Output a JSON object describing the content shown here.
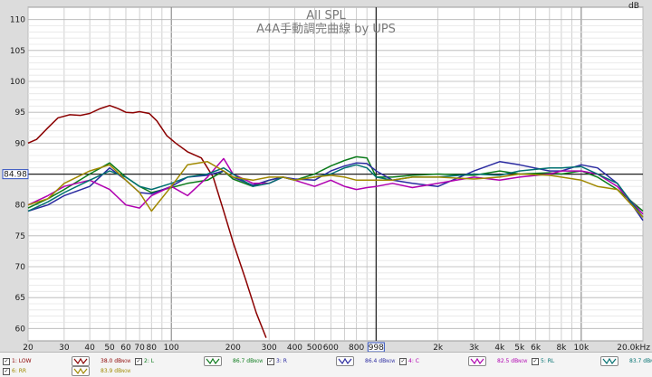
{
  "chart_data": {
    "type": "line",
    "title": "All SPL",
    "subtitle": "A4A手動調完曲線 by UPS",
    "ylabel": "dB",
    "xlim": [
      20,
      20000
    ],
    "ylim": [
      58,
      112
    ],
    "xscale": "log",
    "grid": true,
    "reference_line_db": 84.98,
    "reference_label": "84.98",
    "cursor_freq": 998,
    "cursor_label": "998",
    "y_ticks": [
      60,
      65,
      70,
      75,
      80,
      85,
      90,
      95,
      100,
      105,
      110
    ],
    "y_tick_labels": [
      "60",
      "65",
      "70",
      "75",
      "80",
      "85",
      "90",
      "95",
      "100",
      "105",
      "110"
    ],
    "x_ticks": [
      20,
      30,
      40,
      50,
      60,
      70,
      80,
      100,
      200,
      300,
      400,
      500,
      600,
      800,
      2000,
      3000,
      4000,
      5000,
      6000,
      8000,
      10000,
      20000
    ],
    "x_tick_labels": [
      "20",
      "30",
      "40",
      "50",
      "60",
      "70",
      "80",
      "100",
      "200",
      "300",
      "400",
      "500",
      "600",
      "800",
      "2k",
      "3k",
      "4k",
      "5k",
      "6k",
      "8k",
      "10k",
      "20.0kHz"
    ],
    "series": [
      {
        "name": "1: LOW",
        "color": "#8b0000",
        "checked": "✓",
        "level": "38.0 dB",
        "level_unit": "NOW",
        "x": [
          20,
          22,
          25,
          28,
          32,
          36,
          40,
          45,
          50,
          55,
          60,
          65,
          70,
          78,
          85,
          95,
          105,
          120,
          140,
          160,
          180,
          200,
          230,
          260,
          290
        ],
        "y": [
          90.0,
          90.6,
          92.5,
          94.1,
          94.6,
          94.5,
          94.8,
          95.6,
          96.1,
          95.6,
          95.0,
          94.9,
          95.1,
          94.8,
          93.6,
          91.2,
          90.0,
          88.6,
          87.6,
          84.5,
          79.0,
          74.0,
          68.0,
          62.5,
          58.5
        ]
      },
      {
        "name": "2: L",
        "color": "#0a7a1a",
        "checked": "✓",
        "level": "86.7 dB",
        "level_unit": "NOW",
        "x": [
          20,
          25,
          30,
          40,
          50,
          60,
          70,
          80,
          100,
          120,
          150,
          180,
          200,
          250,
          300,
          350,
          400,
          500,
          600,
          700,
          800,
          900,
          1000,
          1200,
          1500,
          2000,
          3000,
          4000,
          5000,
          7000,
          8000,
          10000,
          12000,
          15000,
          20000
        ],
        "y": [
          79.5,
          81.0,
          82.5,
          85.0,
          86.8,
          84.5,
          83.0,
          82.0,
          82.8,
          83.5,
          84.0,
          85.5,
          84.2,
          83.0,
          84.0,
          84.5,
          84.0,
          85.0,
          86.3,
          87.2,
          87.8,
          87.6,
          84.5,
          84.5,
          84.8,
          85.0,
          84.8,
          85.5,
          85.0,
          85.2,
          85.0,
          85.5,
          84.5,
          82.5,
          79.0
        ]
      },
      {
        "name": "3: R",
        "color": "#2a2aa0",
        "checked": "✓",
        "level": "86.4 dB",
        "level_unit": "NOW",
        "x": [
          20,
          25,
          30,
          40,
          50,
          60,
          70,
          80,
          100,
          120,
          150,
          180,
          200,
          250,
          300,
          350,
          400,
          500,
          600,
          700,
          800,
          900,
          1000,
          1200,
          1500,
          2000,
          3000,
          4000,
          5000,
          7000,
          8000,
          10000,
          12000,
          15000,
          20000
        ],
        "y": [
          79.0,
          80.0,
          81.5,
          83.0,
          86.0,
          84.0,
          82.0,
          81.8,
          83.0,
          84.5,
          84.8,
          85.5,
          84.5,
          83.2,
          84.0,
          84.5,
          84.2,
          84.0,
          85.5,
          86.3,
          86.8,
          86.7,
          85.5,
          84.0,
          83.5,
          83.0,
          85.5,
          87.0,
          86.5,
          85.5,
          85.5,
          86.5,
          86.0,
          83.5,
          77.5
        ]
      },
      {
        "name": "4: C",
        "color": "#b000b0",
        "checked": "✓",
        "level": "82.5 dB",
        "level_unit": "NOW",
        "x": [
          20,
          25,
          30,
          40,
          50,
          60,
          70,
          80,
          100,
          120,
          150,
          180,
          200,
          250,
          300,
          350,
          400,
          500,
          600,
          700,
          800,
          900,
          1000,
          1200,
          1500,
          2000,
          3000,
          4000,
          5000,
          7000,
          8000,
          10000,
          12000,
          15000,
          20000
        ],
        "y": [
          80.0,
          81.5,
          83.0,
          84.0,
          82.5,
          80.0,
          79.5,
          81.5,
          83.0,
          81.5,
          84.5,
          87.5,
          85.0,
          83.5,
          83.5,
          84.5,
          84.0,
          83.0,
          84.0,
          83.0,
          82.5,
          82.8,
          83.0,
          83.5,
          82.8,
          83.5,
          84.5,
          84.0,
          84.5,
          85.0,
          85.5,
          85.5,
          85.0,
          83.0,
          78.5
        ]
      },
      {
        "name": "5: RL",
        "color": "#007070",
        "checked": "✓",
        "level": "83.7 dB",
        "level_unit": "NOW",
        "x": [
          20,
          25,
          30,
          40,
          50,
          60,
          70,
          80,
          100,
          120,
          150,
          180,
          200,
          250,
          300,
          350,
          400,
          500,
          600,
          700,
          800,
          900,
          1000,
          1200,
          1500,
          2000,
          3000,
          4000,
          5000,
          7000,
          8000,
          10000,
          12000,
          15000,
          20000
        ],
        "y": [
          79.0,
          80.5,
          82.0,
          84.0,
          85.5,
          84.5,
          83.0,
          82.5,
          83.5,
          84.5,
          85.0,
          86.0,
          85.0,
          83.0,
          83.5,
          84.5,
          84.0,
          84.5,
          85.0,
          86.0,
          86.5,
          86.0,
          84.5,
          84.0,
          84.5,
          84.5,
          85.0,
          84.8,
          85.5,
          86.0,
          86.0,
          86.2,
          85.0,
          83.5,
          78.0
        ]
      },
      {
        "name": "6: RR",
        "color": "#a08800",
        "checked": "✓",
        "level": "83.9 dB",
        "level_unit": "NOW",
        "x": [
          20,
          25,
          30,
          40,
          50,
          60,
          70,
          80,
          100,
          120,
          150,
          180,
          200,
          250,
          300,
          350,
          400,
          500,
          600,
          700,
          800,
          900,
          1000,
          1200,
          1500,
          2000,
          3000,
          4000,
          5000,
          7000,
          8000,
          10000,
          12000,
          15000,
          20000
        ],
        "y": [
          80.0,
          81.0,
          83.5,
          85.5,
          86.5,
          84.0,
          82.0,
          79.0,
          83.0,
          86.5,
          87.0,
          85.5,
          84.5,
          84.0,
          84.5,
          84.5,
          84.0,
          84.5,
          84.8,
          84.5,
          84.0,
          84.0,
          84.0,
          84.0,
          84.5,
          84.5,
          84.2,
          84.5,
          85.0,
          84.8,
          84.5,
          84.0,
          83.0,
          82.5,
          78.0
        ]
      }
    ]
  }
}
